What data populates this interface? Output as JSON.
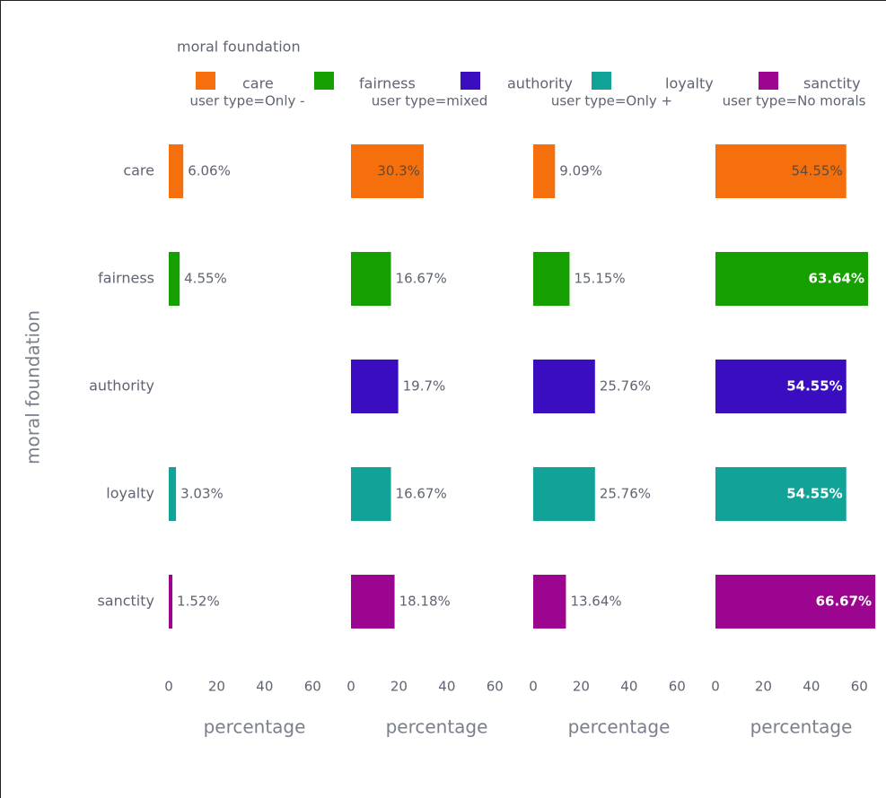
{
  "legend": {
    "title": "moral foundation",
    "items": [
      {
        "name": "care",
        "color": "#f5700c"
      },
      {
        "name": "fairness",
        "color": "#15a000"
      },
      {
        "name": "authority",
        "color": "#3a0ec0"
      },
      {
        "name": "loyalty",
        "color": "#12a398"
      },
      {
        "name": "sanctity",
        "color": "#9c0590"
      }
    ]
  },
  "y_label": "moral foundation",
  "chart_data": [
    {
      "type": "bar",
      "orientation": "horizontal",
      "title": "user type=Only -",
      "x_label": "percentage",
      "categories": [
        "care",
        "fairness",
        "authority",
        "loyalty",
        "sanctity"
      ],
      "colors": [
        "#f5700c",
        "#15a000",
        "#3a0ec0",
        "#12a398",
        "#9c0590"
      ],
      "values": [
        6.06,
        4.55,
        null,
        3.03,
        1.52
      ],
      "value_labels": [
        "6.06%",
        "4.55%",
        null,
        "3.03%",
        "1.52%"
      ],
      "xlim": [
        0,
        70
      ],
      "xticks": [
        0,
        20,
        40,
        60
      ],
      "grid": false
    },
    {
      "type": "bar",
      "orientation": "horizontal",
      "title": "user type=mixed",
      "x_label": "percentage",
      "categories": [
        "care",
        "fairness",
        "authority",
        "loyalty",
        "sanctity"
      ],
      "colors": [
        "#f5700c",
        "#15a000",
        "#3a0ec0",
        "#12a398",
        "#9c0590"
      ],
      "values": [
        30.3,
        16.67,
        19.7,
        16.67,
        18.18
      ],
      "value_labels": [
        "30.3%",
        "16.67%",
        "19.7%",
        "16.67%",
        "18.18%"
      ],
      "xlim": [
        0,
        70
      ],
      "xticks": [
        0,
        20,
        40,
        60
      ],
      "grid": false
    },
    {
      "type": "bar",
      "orientation": "horizontal",
      "title": "user type=Only +",
      "x_label": "percentage",
      "categories": [
        "care",
        "fairness",
        "authority",
        "loyalty",
        "sanctity"
      ],
      "colors": [
        "#f5700c",
        "#15a000",
        "#3a0ec0",
        "#12a398",
        "#9c0590"
      ],
      "values": [
        9.09,
        15.15,
        25.76,
        25.76,
        13.64
      ],
      "value_labels": [
        "9.09%",
        "15.15%",
        "25.76%",
        "25.76%",
        "13.64%"
      ],
      "xlim": [
        0,
        70
      ],
      "xticks": [
        0,
        20,
        40,
        60
      ],
      "grid": false
    },
    {
      "type": "bar",
      "orientation": "horizontal",
      "title": "user type=No morals",
      "x_label": "percentage",
      "categories": [
        "care",
        "fairness",
        "authority",
        "loyalty",
        "sanctity"
      ],
      "colors": [
        "#f5700c",
        "#15a000",
        "#3a0ec0",
        "#12a398",
        "#9c0590"
      ],
      "values": [
        54.55,
        63.64,
        54.55,
        54.55,
        66.67
      ],
      "value_labels": [
        "54.55%",
        "63.64%",
        "54.55%",
        "54.55%",
        "66.67%"
      ],
      "xlim": [
        0,
        70
      ],
      "xticks": [
        0,
        20,
        40,
        60
      ],
      "grid": false
    }
  ]
}
